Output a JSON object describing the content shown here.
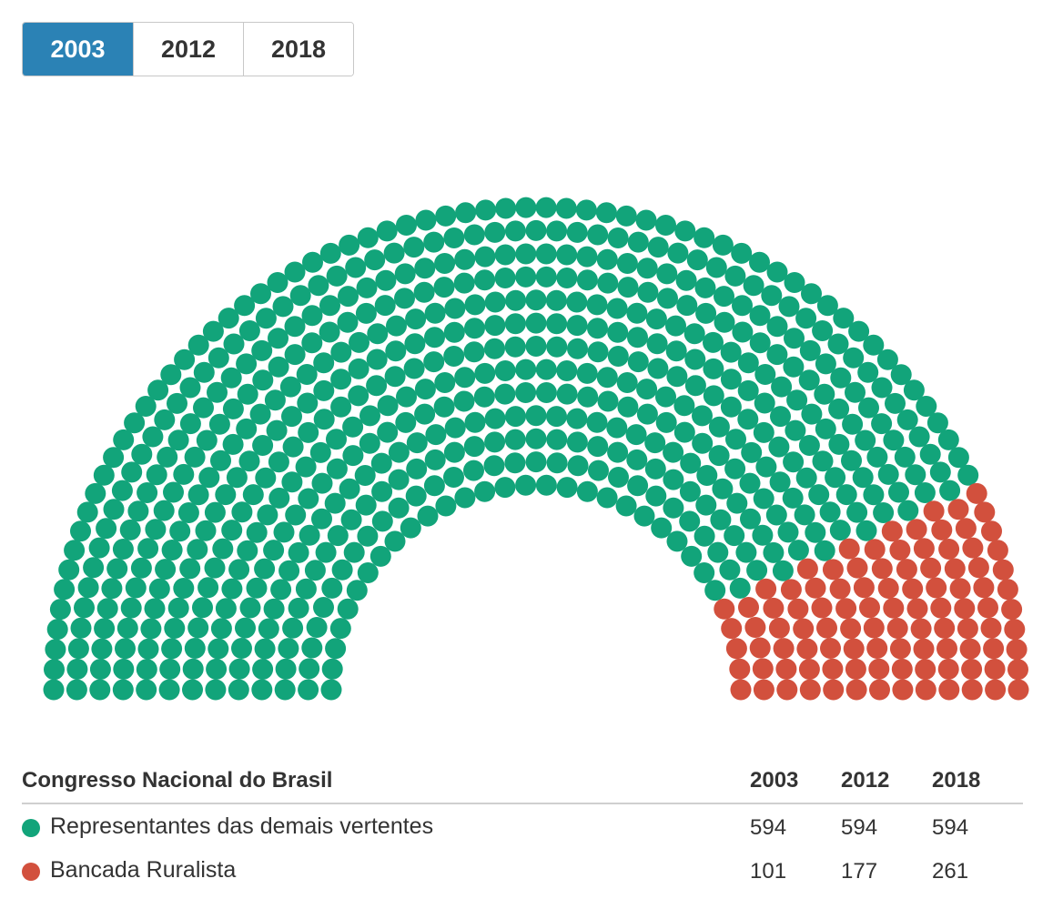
{
  "tabs": [
    {
      "label": "2003",
      "active": true
    },
    {
      "label": "2012",
      "active": false
    },
    {
      "label": "2018",
      "active": false
    }
  ],
  "colors": {
    "other": "#12a47a",
    "ruralista": "#d2503d",
    "tab_active": "#2b82b5"
  },
  "table": {
    "title": "Congresso Nacional do Brasil",
    "years": [
      "2003",
      "2012",
      "2018"
    ],
    "rows": [
      {
        "label": "Representantes das demais vertentes",
        "values": [
          "594",
          "594",
          "594"
        ]
      },
      {
        "label": "Bancada Ruralista",
        "values": [
          "101",
          "177",
          "261"
        ]
      }
    ]
  },
  "chart_data": {
    "type": "parliament",
    "title": "Congresso Nacional do Brasil",
    "selected_year": "2003",
    "total_seats": 695,
    "series": [
      {
        "name": "Representantes das demais vertentes",
        "color": "#12a47a",
        "values": {
          "2003": 594,
          "2012": 594,
          "2018": 594
        }
      },
      {
        "name": "Bancada Ruralista",
        "color": "#d2503d",
        "values": {
          "2003": 101,
          "2012": 177,
          "2018": 261
        }
      }
    ]
  }
}
